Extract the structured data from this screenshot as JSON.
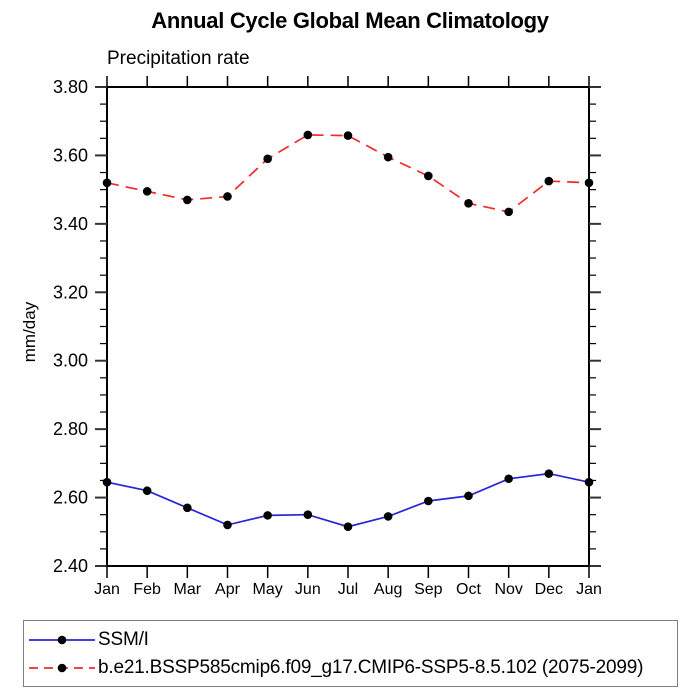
{
  "chart": {
    "title": "Annual Cycle Global Mean Climatology",
    "subtitle": "Precipitation rate",
    "ylabel": "mm/day"
  },
  "chart_data": {
    "type": "line",
    "title": "Annual Cycle Global Mean Climatology",
    "subtitle": "Precipitation rate",
    "xlabel": "",
    "ylabel": "mm/day",
    "categories": [
      "Jan",
      "Feb",
      "Mar",
      "Apr",
      "May",
      "Jun",
      "Jul",
      "Aug",
      "Sep",
      "Oct",
      "Nov",
      "Dec",
      "Jan"
    ],
    "ylim": [
      2.4,
      3.8
    ],
    "ytick_step": 0.2,
    "yminor_step": 0.05,
    "ytick_labels": [
      "2.40",
      "2.60",
      "2.80",
      "3.00",
      "3.20",
      "3.40",
      "3.60",
      "3.80"
    ],
    "grid": false,
    "legend_position": "bottom-left-box",
    "axis_color": "#000000",
    "marker": "filled-circle",
    "marker_color": "#000000",
    "series": [
      {
        "name": "SSM/I",
        "color": "#2626d8",
        "line_style": "solid",
        "values": [
          2.645,
          2.62,
          2.57,
          2.52,
          2.548,
          2.55,
          2.515,
          2.545,
          2.59,
          2.605,
          2.655,
          2.67,
          2.645
        ]
      },
      {
        "name": "b.e21.BSSP585cmip6.f09_g17.CMIP6-SSP5-8.5.102 (2075-2099)",
        "color": "#ef2b2b",
        "line_style": "dashed",
        "values": [
          3.52,
          3.495,
          3.47,
          3.48,
          3.59,
          3.66,
          3.658,
          3.595,
          3.54,
          3.46,
          3.435,
          3.525,
          3.52
        ]
      }
    ]
  }
}
